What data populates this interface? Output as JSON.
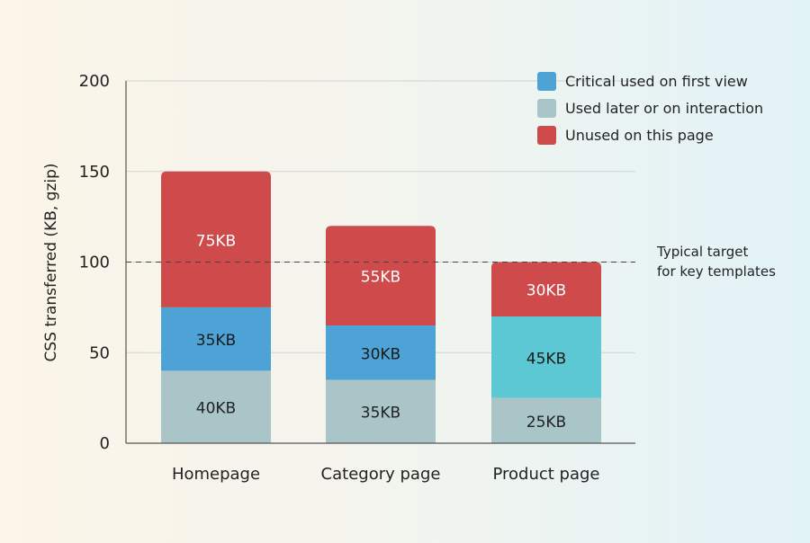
{
  "chart_data": {
    "type": "bar",
    "stacked": true,
    "categories": [
      "Homepage",
      "Category page",
      "Product page"
    ],
    "series": [
      {
        "name": "Used later or on interaction",
        "values": [
          40,
          35,
          25
        ],
        "labels": [
          "40KB",
          "35KB",
          "25KB"
        ],
        "colors": [
          "#a9c5c7",
          "#a9c5c7",
          "#a9c5c7"
        ],
        "label_color": "#222222"
      },
      {
        "name": "Critical used on first view",
        "values": [
          35,
          30,
          45
        ],
        "labels": [
          "35KB",
          "30KB",
          "45KB"
        ],
        "colors": [
          "#4ea3d6",
          "#4ea3d6",
          "#5cc8d4"
        ],
        "label_color": "#1a1a1a"
      },
      {
        "name": "Unused on this page",
        "values": [
          75,
          55,
          30
        ],
        "labels": [
          "75KB",
          "55KB",
          "30KB"
        ],
        "colors": [
          "#cf4a4a",
          "#cf4a4a",
          "#cf4a4a"
        ],
        "label_color": "#ffffff"
      }
    ],
    "legend": {
      "placement": "top-right",
      "entries": [
        {
          "label": "Critical used on first view",
          "color": "#4ea3d6"
        },
        {
          "label": "Used later or on interaction",
          "color": "#a9c5c7"
        },
        {
          "label": "Unused on this page",
          "color": "#cf4a4a"
        }
      ]
    },
    "ylabel": "CSS transferred (KB, gzip)",
    "xlabel": "",
    "ylim": [
      0,
      200
    ],
    "yticks": [
      0,
      50,
      100,
      150,
      200
    ],
    "grid": true,
    "reference_line": {
      "value": 100,
      "label_lines": [
        "Typical target",
        "for key templates"
      ]
    }
  }
}
